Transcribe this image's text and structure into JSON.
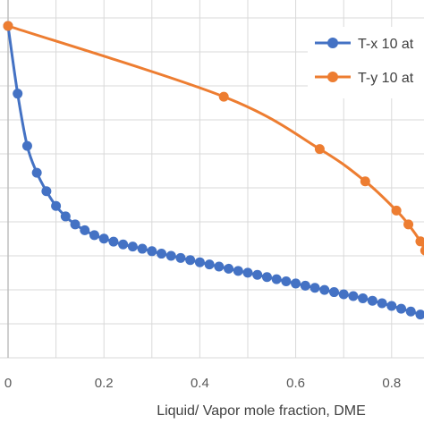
{
  "chart_data": {
    "type": "line",
    "title": "",
    "xlabel": "Liquid/ Vapor mole fraction, DME",
    "ylabel": "",
    "xlim": [
      0,
      0.9
    ],
    "x_ticks": [
      "0",
      "0.2",
      "0.4",
      "0.6",
      "0.8"
    ],
    "grid": true,
    "legend_position": "top-right",
    "series": [
      {
        "name": "T-x 10 at",
        "color": "#4472C4",
        "marker": "circle",
        "points": [
          [
            0.0,
            1.0
          ],
          [
            0.02,
            0.78
          ],
          [
            0.04,
            0.61
          ],
          [
            0.06,
            0.523
          ],
          [
            0.08,
            0.463
          ],
          [
            0.1,
            0.415
          ],
          [
            0.12,
            0.381
          ],
          [
            0.14,
            0.355
          ],
          [
            0.16,
            0.336
          ],
          [
            0.18,
            0.32
          ],
          [
            0.2,
            0.309
          ],
          [
            0.22,
            0.299
          ],
          [
            0.24,
            0.29
          ],
          [
            0.26,
            0.283
          ],
          [
            0.28,
            0.276
          ],
          [
            0.3,
            0.268
          ],
          [
            0.32,
            0.26
          ],
          [
            0.34,
            0.253
          ],
          [
            0.36,
            0.246
          ],
          [
            0.38,
            0.239
          ],
          [
            0.4,
            0.232
          ],
          [
            0.42,
            0.225
          ],
          [
            0.44,
            0.218
          ],
          [
            0.46,
            0.211
          ],
          [
            0.48,
            0.204
          ],
          [
            0.5,
            0.198
          ],
          [
            0.52,
            0.191
          ],
          [
            0.54,
            0.184
          ],
          [
            0.56,
            0.177
          ],
          [
            0.58,
            0.17
          ],
          [
            0.6,
            0.163
          ],
          [
            0.62,
            0.156
          ],
          [
            0.64,
            0.149
          ],
          [
            0.66,
            0.142
          ],
          [
            0.68,
            0.135
          ],
          [
            0.7,
            0.128
          ],
          [
            0.72,
            0.122
          ],
          [
            0.74,
            0.115
          ],
          [
            0.76,
            0.107
          ],
          [
            0.78,
            0.099
          ],
          [
            0.8,
            0.09
          ],
          [
            0.82,
            0.081
          ],
          [
            0.84,
            0.072
          ],
          [
            0.86,
            0.062
          ],
          [
            0.88,
            0.052
          ],
          [
            0.9,
            0.045
          ]
        ]
      },
      {
        "name": "T-y 10 at",
        "color": "#ED7D31",
        "marker": "circle",
        "points": [
          [
            0.0,
            1.0
          ],
          [
            0.45,
            0.77
          ],
          [
            0.65,
            0.6
          ],
          [
            0.745,
            0.495
          ],
          [
            0.81,
            0.4
          ],
          [
            0.835,
            0.355
          ],
          [
            0.86,
            0.3
          ],
          [
            0.87,
            0.27
          ],
          [
            0.88,
            0.245
          ],
          [
            0.89,
            0.22
          ],
          [
            0.9,
            0.19
          ]
        ]
      }
    ]
  }
}
